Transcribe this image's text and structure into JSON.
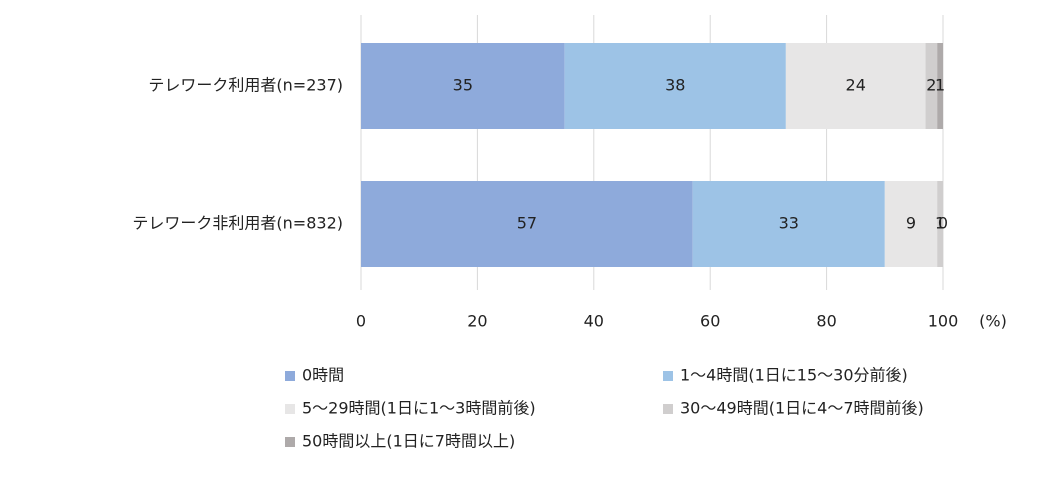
{
  "chart_data": {
    "type": "stacked-bar-horizontal",
    "categories": [
      "テレワーク利用者(n=237)",
      "テレワーク非利用者(n=832)"
    ],
    "series": [
      {
        "name": "0時間",
        "color": "#8eaadb",
        "values": [
          35,
          57
        ]
      },
      {
        "name": "1～4時間(1日に15～30分前後)",
        "color": "#9dc3e6",
        "values": [
          38,
          33
        ]
      },
      {
        "name": "5～29時間(1日に1～3時間前後)",
        "color": "#e7e6e6",
        "values": [
          24,
          9
        ]
      },
      {
        "name": "30～49時間(1日に4～7時間前後)",
        "color": "#d0cece",
        "values": [
          2,
          1
        ]
      },
      {
        "name": "50時間以上(1日に7時間以上)",
        "color": "#aeaaaa",
        "values": [
          1,
          0
        ]
      }
    ],
    "x_label": "(%)",
    "xlim": [
      0,
      100
    ],
    "xticks": [
      0,
      20,
      40,
      60,
      80,
      100
    ],
    "grid": true
  }
}
